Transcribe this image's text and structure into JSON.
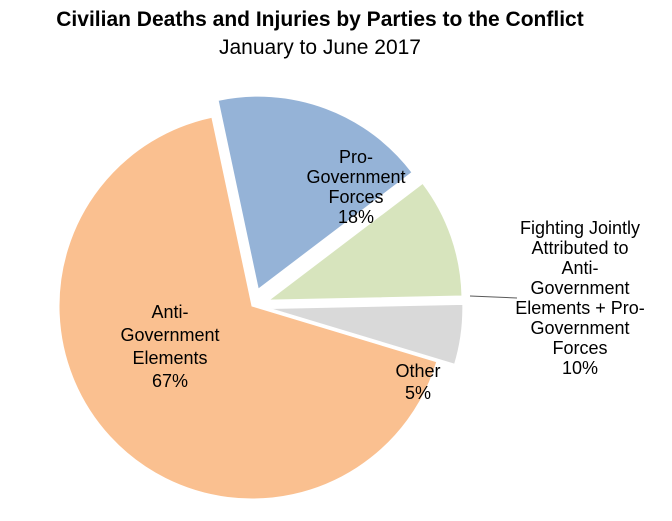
{
  "chart_data": {
    "type": "pie",
    "title": "Civilian Deaths and Injuries by Parties to the Conflict",
    "subtitle": "January to June 2017",
    "slices": [
      {
        "label": "Pro-Government Forces",
        "value": 18,
        "value_label": "18%",
        "color": "#95b3d7",
        "label_lines": [
          "Pro-",
          "Government",
          "Forces",
          "18%"
        ]
      },
      {
        "label": "Fighting Jointly Attributed to Anti-Government Elements + Pro-Government Forces",
        "value": 10,
        "value_label": "10%",
        "color": "#d7e4bd",
        "label_lines": [
          "Fighting Jointly",
          "Attributed to",
          "Anti-",
          "Government",
          "Elements + Pro-",
          "Government",
          "Forces",
          "10%"
        ]
      },
      {
        "label": "Other",
        "value": 5,
        "value_label": "5%",
        "color": "#d9d9d9",
        "label_lines": [
          "Other",
          "5%"
        ]
      },
      {
        "label": "Anti-Government Elements",
        "value": 67,
        "value_label": "67%",
        "color": "#fac090",
        "label_lines": [
          "Anti-",
          "Government",
          "Elements",
          "67%"
        ]
      }
    ]
  }
}
